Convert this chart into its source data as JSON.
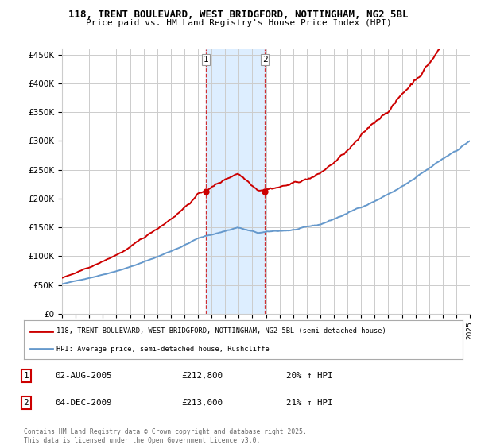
{
  "title_line1": "118, TRENT BOULEVARD, WEST BRIDGFORD, NOTTINGHAM, NG2 5BL",
  "title_line2": "Price paid vs. HM Land Registry's House Price Index (HPI)",
  "ylim": [
    0,
    460000
  ],
  "yticks": [
    0,
    50000,
    100000,
    150000,
    200000,
    250000,
    300000,
    350000,
    400000,
    450000
  ],
  "ytick_labels": [
    "£0",
    "£50K",
    "£100K",
    "£150K",
    "£200K",
    "£250K",
    "£300K",
    "£350K",
    "£400K",
    "£450K"
  ],
  "sale1_year": 2005.58,
  "sale1_price": 212800,
  "sale2_year": 2009.92,
  "sale2_price": 213000,
  "legend_line1": "118, TRENT BOULEVARD, WEST BRIDGFORD, NOTTINGHAM, NG2 5BL (semi-detached house)",
  "legend_line2": "HPI: Average price, semi-detached house, Rushcliffe",
  "table_entries": [
    {
      "num": "1",
      "date": "02-AUG-2005",
      "price": "£212,800",
      "change": "20% ↑ HPI"
    },
    {
      "num": "2",
      "date": "04-DEC-2009",
      "price": "£213,000",
      "change": "21% ↑ HPI"
    }
  ],
  "footer": "Contains HM Land Registry data © Crown copyright and database right 2025.\nThis data is licensed under the Open Government Licence v3.0.",
  "property_color": "#cc0000",
  "hpi_color": "#6699cc",
  "shaded_color": "#ddeeff",
  "grid_color": "#cccccc",
  "background_color": "#ffffff"
}
